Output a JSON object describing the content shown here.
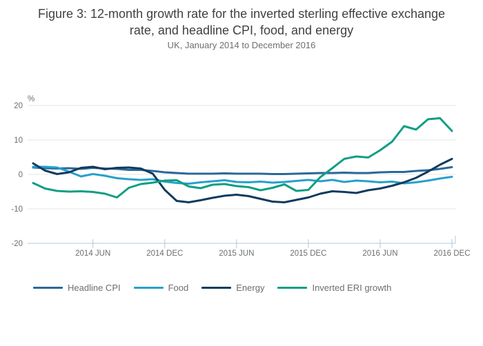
{
  "header": {
    "title": "Figure 3: 12-month growth rate for the inverted sterling effective exchange rate, and headline CPI, food, and energy",
    "subtitle": "UK, January 2014 to December 2016"
  },
  "colors": {
    "title_text": "#414042",
    "muted_text": "#6d6e71",
    "gridline": "#e6e6e6",
    "axis_line": "#b4c7db"
  },
  "chart_data": {
    "type": "line",
    "unit_label": "%",
    "ylim": [
      -20,
      20
    ],
    "y_ticks": [
      20,
      10,
      0,
      -10,
      -20
    ],
    "grid": true,
    "legend_position": "bottom",
    "x": [
      "2014-01",
      "2014-02",
      "2014-03",
      "2014-04",
      "2014-05",
      "2014-06",
      "2014-07",
      "2014-08",
      "2014-09",
      "2014-10",
      "2014-11",
      "2014-12",
      "2015-01",
      "2015-02",
      "2015-03",
      "2015-04",
      "2015-05",
      "2015-06",
      "2015-07",
      "2015-08",
      "2015-09",
      "2015-10",
      "2015-11",
      "2015-12",
      "2016-01",
      "2016-02",
      "2016-03",
      "2016-04",
      "2016-05",
      "2016-06",
      "2016-07",
      "2016-08",
      "2016-09",
      "2016-10",
      "2016-11",
      "2016-12"
    ],
    "x_ticks": [
      {
        "index": 5,
        "label": "2014 JUN"
      },
      {
        "index": 11,
        "label": "2014 DEC"
      },
      {
        "index": 17,
        "label": "2015 JUN"
      },
      {
        "index": 23,
        "label": "2015 DEC"
      },
      {
        "index": 29,
        "label": "2016 JUN"
      },
      {
        "index": 35,
        "label": "2016 DEC"
      }
    ],
    "series": [
      {
        "name": "Headline CPI",
        "color": "#2a6899",
        "values": [
          2.0,
          1.8,
          1.7,
          1.8,
          1.6,
          1.9,
          1.7,
          1.6,
          1.3,
          1.3,
          1.0,
          0.6,
          0.4,
          0.2,
          0.2,
          0.2,
          0.3,
          0.2,
          0.2,
          0.2,
          0.1,
          0.1,
          0.2,
          0.3,
          0.4,
          0.4,
          0.5,
          0.4,
          0.4,
          0.6,
          0.7,
          0.7,
          1.0,
          1.2,
          1.6,
          2.1
        ]
      },
      {
        "name": "Food",
        "color": "#27a0cc",
        "values": [
          2.2,
          2.2,
          2.0,
          0.8,
          -0.6,
          0.1,
          -0.4,
          -1.1,
          -1.4,
          -1.6,
          -1.4,
          -2.1,
          -2.5,
          -2.7,
          -2.3,
          -2.0,
          -1.7,
          -2.2,
          -2.3,
          -2.1,
          -2.4,
          -2.2,
          -1.9,
          -1.6,
          -2.0,
          -1.6,
          -2.2,
          -1.8,
          -2.0,
          -2.3,
          -2.1,
          -2.6,
          -2.3,
          -1.8,
          -1.2,
          -0.7
        ]
      },
      {
        "name": "Energy",
        "color": "#113a5d",
        "values": [
          3.2,
          1.1,
          0.1,
          0.6,
          1.9,
          2.2,
          1.5,
          1.9,
          2.0,
          1.7,
          0.2,
          -4.5,
          -7.7,
          -8.1,
          -7.5,
          -6.8,
          -6.2,
          -5.9,
          -6.3,
          -7.1,
          -7.9,
          -8.1,
          -7.4,
          -6.7,
          -5.6,
          -4.9,
          -5.1,
          -5.4,
          -4.6,
          -4.1,
          -3.3,
          -2.3,
          -1.0,
          0.8,
          2.8,
          4.5
        ]
      },
      {
        "name": "Inverted ERI growth",
        "color": "#0f9e83",
        "values": [
          -2.5,
          -4.1,
          -4.8,
          -5.0,
          -4.9,
          -5.1,
          -5.6,
          -6.7,
          -3.9,
          -2.8,
          -2.4,
          -1.8,
          -1.7,
          -3.5,
          -4.0,
          -3.0,
          -2.8,
          -3.4,
          -3.7,
          -4.6,
          -3.9,
          -2.9,
          -4.8,
          -4.5,
          -0.8,
          1.8,
          4.5,
          5.2,
          4.9,
          7.0,
          9.5,
          14.0,
          13.0,
          16.0,
          16.3,
          12.6
        ]
      }
    ]
  }
}
